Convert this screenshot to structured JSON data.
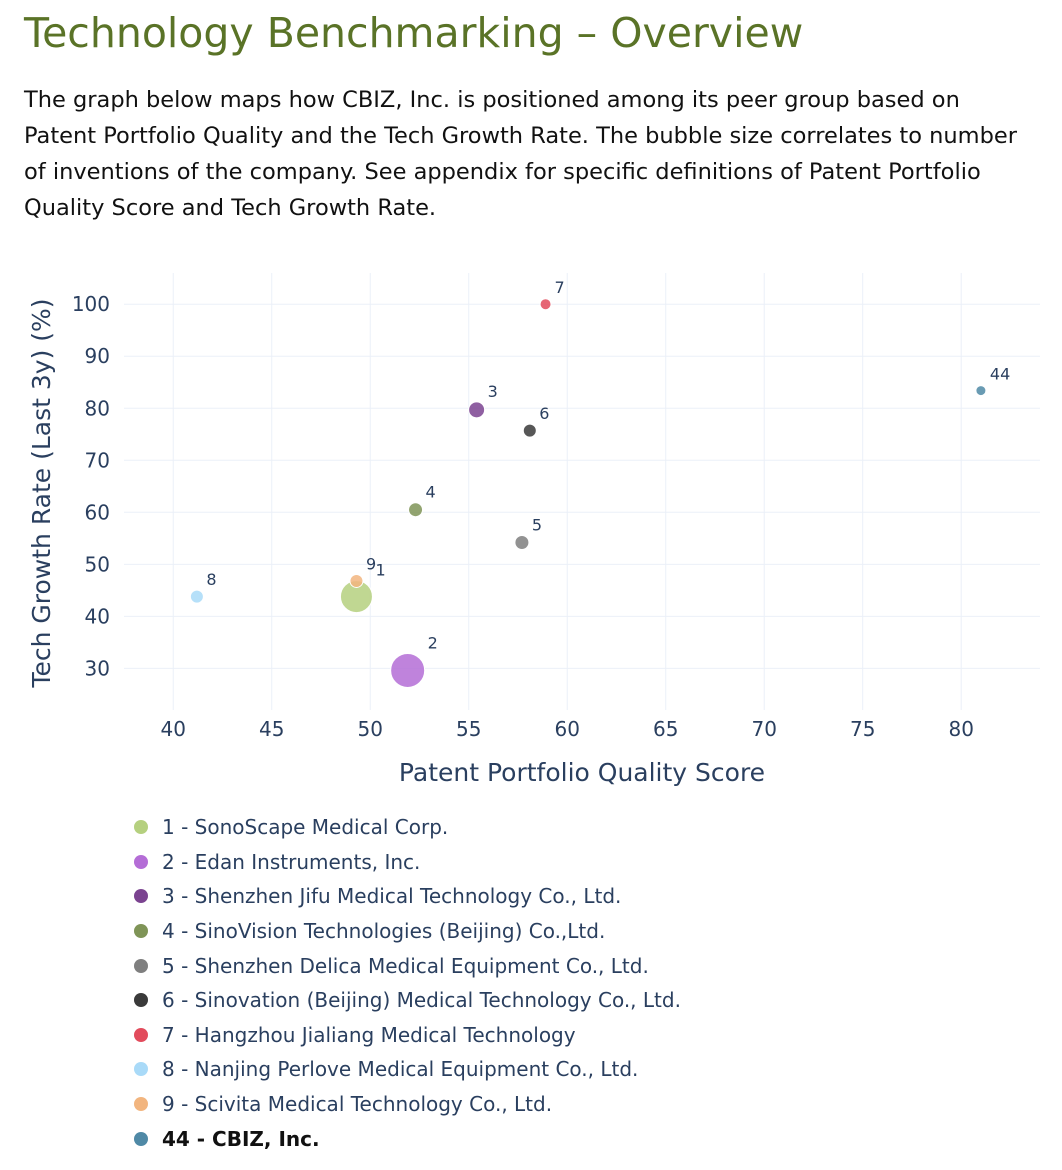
{
  "page": {
    "title": "Technology Benchmarking – Overview",
    "title_color": "#5a7327",
    "intro": "The graph below maps how CBIZ, Inc. is positioned among its peer group based on Patent Portfolio Quality and the Tech Growth Rate. The bubble size correlates to number of inventions of the company. See appendix for specific definitions of Patent Portfolio Quality Score and Tech Growth Rate."
  },
  "chart_data": {
    "type": "scatter",
    "xlabel": "Patent Portfolio Quality Score",
    "ylabel": "Tech Growth Rate (Last 3y) (%)",
    "xlim": [
      37.5,
      84
    ],
    "ylim": [
      22,
      106
    ],
    "xticks": [
      40,
      45,
      50,
      55,
      60,
      65,
      70,
      75,
      80
    ],
    "yticks": [
      30,
      40,
      50,
      60,
      70,
      80,
      90,
      100
    ],
    "grid": true,
    "legend_position": "bottom",
    "size_encoding": "number of inventions (relative)",
    "points": [
      {
        "id": "1",
        "x": 49.3,
        "y": 43.8,
        "size": 16,
        "color": "#b5d07f"
      },
      {
        "id": "2",
        "x": 51.9,
        "y": 29.6,
        "size": 17,
        "color": "#b46dd6"
      },
      {
        "id": "3",
        "x": 55.4,
        "y": 79.7,
        "size": 8,
        "color": "#7b4390"
      },
      {
        "id": "4",
        "x": 52.3,
        "y": 60.5,
        "size": 7,
        "color": "#7f9457"
      },
      {
        "id": "5",
        "x": 57.7,
        "y": 54.2,
        "size": 7,
        "color": "#7f7f7f"
      },
      {
        "id": "6",
        "x": 58.1,
        "y": 75.7,
        "size": 6.5,
        "color": "#3a3a3a"
      },
      {
        "id": "7",
        "x": 58.9,
        "y": 100.0,
        "size": 5.5,
        "color": "#e24b5c"
      },
      {
        "id": "8",
        "x": 41.2,
        "y": 43.8,
        "size": 6.5,
        "color": "#a9daf8"
      },
      {
        "id": "9",
        "x": 49.3,
        "y": 46.8,
        "size": 6.5,
        "color": "#f2b57f"
      },
      {
        "id": "44",
        "x": 81.0,
        "y": 83.4,
        "size": 5,
        "color": "#4f89a6"
      }
    ],
    "series": [
      {
        "name": "1 - SonoScape Medical Corp.",
        "color": "#b5d07f"
      },
      {
        "name": "2 - Edan Instruments, Inc.",
        "color": "#b46dd6"
      },
      {
        "name": "3 - Shenzhen Jifu Medical Technology Co., Ltd.",
        "color": "#7b4390"
      },
      {
        "name": "4 - SinoVision Technologies (Beijing) Co.,Ltd.",
        "color": "#7f9457"
      },
      {
        "name": "5 - Shenzhen Delica Medical Equipment Co., Ltd.",
        "color": "#7f7f7f"
      },
      {
        "name": "6 - Sinovation (Beijing) Medical Technology Co., Ltd.",
        "color": "#3a3a3a"
      },
      {
        "name": "7 - Hangzhou Jialiang Medical Technology",
        "color": "#e24b5c"
      },
      {
        "name": "8 - Nanjing Perlove Medical Equipment Co., Ltd.",
        "color": "#a9daf8"
      },
      {
        "name": "9 - Scivita Medical Technology Co., Ltd.",
        "color": "#f2b57f"
      },
      {
        "name": "44 - CBIZ, Inc.",
        "color": "#4f89a6",
        "highlight": true
      }
    ]
  }
}
